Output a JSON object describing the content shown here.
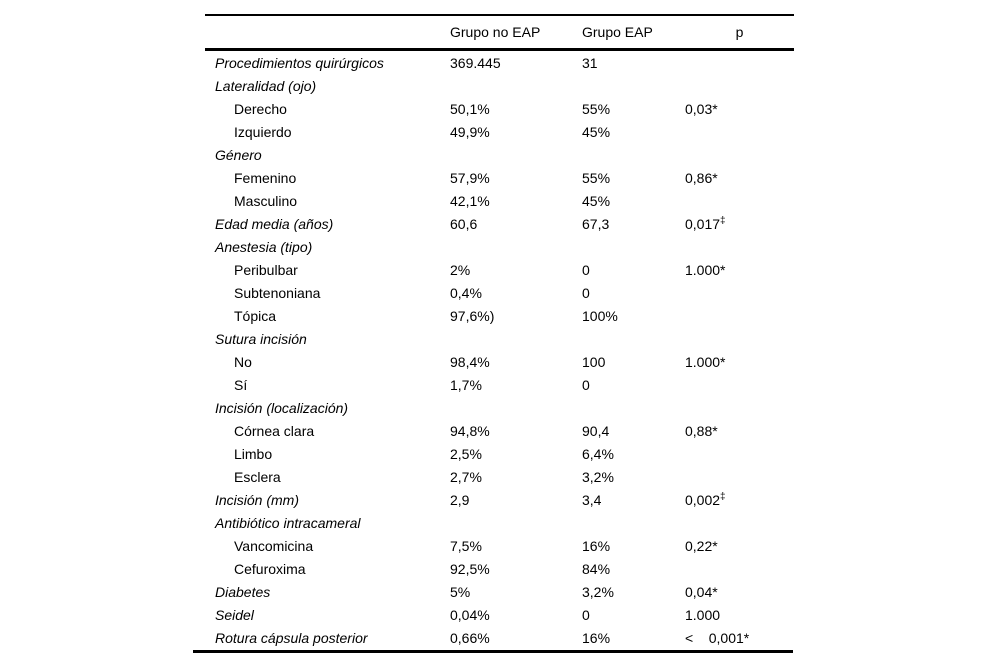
{
  "table": {
    "columns": [
      "",
      "Grupo no EAP",
      "Grupo EAP",
      "p"
    ],
    "text_color": "#000000",
    "background_color": "#ffffff",
    "rows": [
      {
        "label": "Procedimientos quirúrgicos",
        "style": "category",
        "no_eap": "369.445",
        "eap": "31",
        "p": ""
      },
      {
        "label": "Lateralidad (ojo)",
        "style": "category",
        "no_eap": "",
        "eap": "",
        "p": ""
      },
      {
        "label": "Derecho",
        "style": "sub",
        "no_eap": "50,1%",
        "eap": "55%",
        "p": "0,03*"
      },
      {
        "label": "Izquierdo",
        "style": "sub",
        "no_eap": "49,9%",
        "eap": "45%",
        "p": ""
      },
      {
        "label": "Género",
        "style": "category",
        "no_eap": "",
        "eap": "",
        "p": ""
      },
      {
        "label": "Femenino",
        "style": "sub",
        "no_eap": "57,9%",
        "eap": "55%",
        "p": "0,86*"
      },
      {
        "label": "Masculino",
        "style": "sub",
        "no_eap": "42,1%",
        "eap": "45%",
        "p": ""
      },
      {
        "label": "Edad media (años)",
        "style": "category",
        "no_eap": "60,6",
        "eap": "67,3",
        "p": "0,017",
        "p_sup": "‡"
      },
      {
        "label": "Anestesia (tipo)",
        "style": "category",
        "no_eap": "",
        "eap": "",
        "p": ""
      },
      {
        "label": "Peribulbar",
        "style": "sub",
        "no_eap": "2%",
        "eap": "0",
        "p": "1.000*"
      },
      {
        "label": "Subtenoniana",
        "style": "sub",
        "no_eap": "0,4%",
        "eap": "0",
        "p": ""
      },
      {
        "label": "Tópica",
        "style": "sub",
        "no_eap": "97,6%)",
        "eap": "100%",
        "p": ""
      },
      {
        "label": "Sutura incisión",
        "style": "category",
        "no_eap": "",
        "eap": "",
        "p": ""
      },
      {
        "label": "No",
        "style": "sub",
        "no_eap": "98,4%",
        "eap": "100",
        "p": "1.000*"
      },
      {
        "label": "Sí",
        "style": "sub",
        "no_eap": "1,7%",
        "eap": "0",
        "p": ""
      },
      {
        "label": "Incisión (localización)",
        "style": "category",
        "no_eap": "",
        "eap": "",
        "p": ""
      },
      {
        "label": "Córnea clara",
        "style": "sub",
        "no_eap": "94,8%",
        "eap": "90,4",
        "p": "0,88*"
      },
      {
        "label": "Limbo",
        "style": "sub",
        "no_eap": "2,5%",
        "eap": "6,4%",
        "p": ""
      },
      {
        "label": "Esclera",
        "style": "sub",
        "no_eap": "2,7%",
        "eap": "3,2%",
        "p": ""
      },
      {
        "label": "Incisión (mm)",
        "style": "category",
        "no_eap": "2,9",
        "eap": "3,4",
        "p": "0,002",
        "p_sup": "‡"
      },
      {
        "label": "Antibiótico intracameral",
        "style": "category",
        "no_eap": "",
        "eap": "",
        "p": ""
      },
      {
        "label": "Vancomicina",
        "style": "sub",
        "no_eap": "7,5%",
        "eap": "16%",
        "p": "0,22*"
      },
      {
        "label": "Cefuroxima",
        "style": "sub",
        "no_eap": "92,5%",
        "eap": "84%",
        "p": ""
      },
      {
        "label": "Diabetes",
        "style": "category",
        "no_eap": "5%",
        "eap": "3,2%",
        "p": "0,04*"
      },
      {
        "label": "Seidel",
        "style": "category",
        "no_eap": "0,04%",
        "eap": "0",
        "p": "1.000"
      },
      {
        "label": "Rotura cápsula posterior",
        "style": "category",
        "no_eap": "0,66%",
        "eap": "16%",
        "p": "<    0,001*"
      }
    ]
  }
}
